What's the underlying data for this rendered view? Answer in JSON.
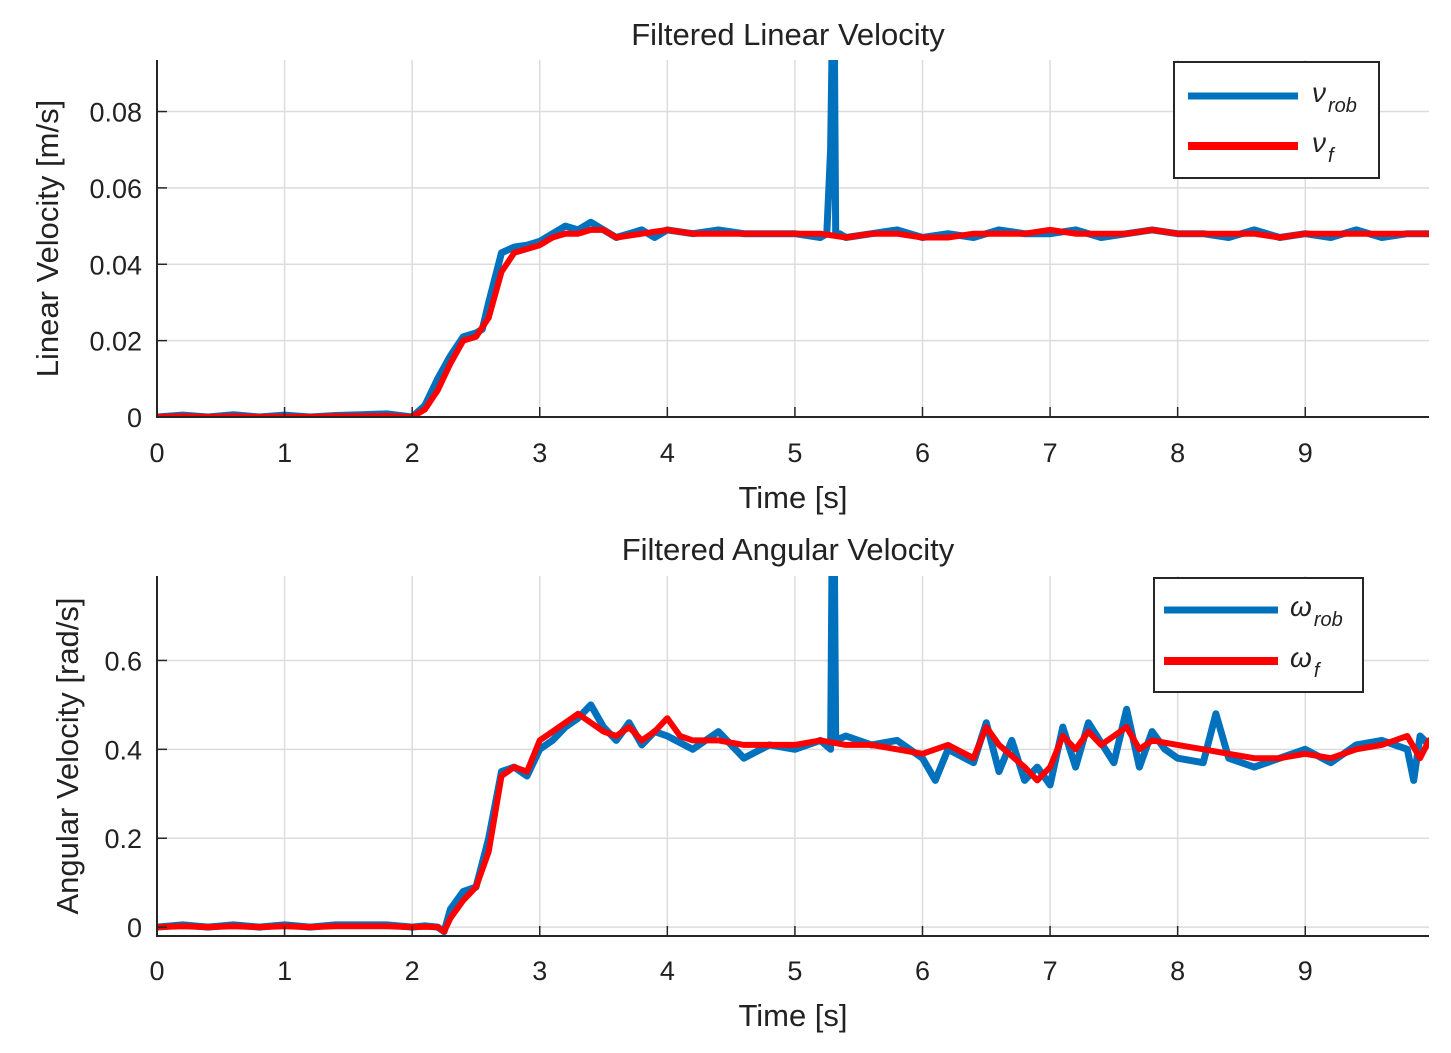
{
  "chart_data": [
    {
      "type": "line",
      "title": "Filtered Linear Velocity",
      "xlabel": "Time [s]",
      "ylabel": "Linear Velocity [m/s]",
      "xlim": [
        0,
        9.97
      ],
      "ylim": [
        0,
        0.0935
      ],
      "grid": true,
      "xticks": [
        0,
        1,
        2,
        3,
        4,
        5,
        6,
        7,
        8,
        9
      ],
      "xtick_labels": [
        "0",
        "1",
        "2",
        "3",
        "4",
        "5",
        "6",
        "7",
        "8",
        "9"
      ],
      "yticks": [
        0,
        0.02,
        0.04,
        0.06,
        0.08
      ],
      "ytick_labels": [
        "0",
        "0.02",
        "0.04",
        "0.06",
        "0.08"
      ],
      "legend_position": "top-right",
      "series": [
        {
          "name": "ν_rob",
          "legend_main": "ν",
          "legend_sub": "rob",
          "color": "#0072BD",
          "x": [
            0,
            0.2,
            0.4,
            0.6,
            0.8,
            1.0,
            1.2,
            1.4,
            1.6,
            1.8,
            2.0,
            2.1,
            2.2,
            2.3,
            2.4,
            2.5,
            2.55,
            2.6,
            2.7,
            2.8,
            2.9,
            3.0,
            3.1,
            3.2,
            3.3,
            3.4,
            3.5,
            3.6,
            3.7,
            3.8,
            3.9,
            4.0,
            4.2,
            4.4,
            4.6,
            4.8,
            5.0,
            5.2,
            5.25,
            5.28,
            5.29,
            5.3,
            5.31,
            5.32,
            5.35,
            5.4,
            5.6,
            5.8,
            6.0,
            6.2,
            6.4,
            6.6,
            6.8,
            7.0,
            7.2,
            7.4,
            7.6,
            7.8,
            8.0,
            8.2,
            8.4,
            8.6,
            8.8,
            9.0,
            9.2,
            9.4,
            9.6,
            9.8,
            9.97
          ],
          "values": [
            0,
            0.0005,
            0,
            0.0006,
            0,
            0.0005,
            0,
            0.0004,
            0.0006,
            0.0008,
            0,
            0.003,
            0.01,
            0.016,
            0.021,
            0.022,
            0.023,
            0.03,
            0.043,
            0.0445,
            0.045,
            0.046,
            0.048,
            0.05,
            0.049,
            0.051,
            0.049,
            0.047,
            0.048,
            0.049,
            0.047,
            0.049,
            0.048,
            0.049,
            0.048,
            0.048,
            0.048,
            0.047,
            0.048,
            0.07,
            0.0935,
            0.0935,
            0.0935,
            0.048,
            0.048,
            0.047,
            0.048,
            0.049,
            0.047,
            0.048,
            0.047,
            0.049,
            0.048,
            0.048,
            0.049,
            0.047,
            0.048,
            0.049,
            0.048,
            0.048,
            0.047,
            0.049,
            0.047,
            0.048,
            0.047,
            0.049,
            0.047,
            0.048,
            0.048
          ]
        },
        {
          "name": "ν_f",
          "legend_main": "ν",
          "legend_sub": "f",
          "color": "#FF0000",
          "x": [
            0,
            0.2,
            0.4,
            0.6,
            0.8,
            1.0,
            1.2,
            1.4,
            1.6,
            1.8,
            2.0,
            2.1,
            2.2,
            2.3,
            2.4,
            2.5,
            2.6,
            2.7,
            2.8,
            2.9,
            3.0,
            3.1,
            3.2,
            3.3,
            3.4,
            3.5,
            3.6,
            3.8,
            4.0,
            4.2,
            4.4,
            4.6,
            4.8,
            5.0,
            5.2,
            5.4,
            5.6,
            5.8,
            6.0,
            6.2,
            6.4,
            6.6,
            6.8,
            7.0,
            7.2,
            7.4,
            7.6,
            7.8,
            8.0,
            8.2,
            8.4,
            8.6,
            8.8,
            9.0,
            9.2,
            9.4,
            9.6,
            9.8,
            9.97
          ],
          "values": [
            0,
            0.0002,
            0,
            0.0002,
            0,
            0.0001,
            0,
            0.0002,
            0.0002,
            0.0003,
            0,
            0.002,
            0.007,
            0.014,
            0.02,
            0.021,
            0.026,
            0.038,
            0.043,
            0.044,
            0.045,
            0.047,
            0.048,
            0.048,
            0.049,
            0.049,
            0.047,
            0.048,
            0.049,
            0.048,
            0.048,
            0.048,
            0.048,
            0.048,
            0.048,
            0.047,
            0.048,
            0.048,
            0.047,
            0.047,
            0.048,
            0.048,
            0.048,
            0.049,
            0.048,
            0.048,
            0.048,
            0.049,
            0.048,
            0.048,
            0.048,
            0.048,
            0.047,
            0.048,
            0.048,
            0.048,
            0.048,
            0.048,
            0.048
          ]
        }
      ]
    },
    {
      "type": "line",
      "title": "Filtered Angular Velocity",
      "xlabel": "Time [s]",
      "ylabel": "Angular Velocity [rad/s]",
      "xlim": [
        0,
        9.97
      ],
      "ylim": [
        -0.02,
        0.79
      ],
      "grid": true,
      "xticks": [
        0,
        1,
        2,
        3,
        4,
        5,
        6,
        7,
        8,
        9
      ],
      "xtick_labels": [
        "0",
        "1",
        "2",
        "3",
        "4",
        "5",
        "6",
        "7",
        "8",
        "9"
      ],
      "yticks": [
        0,
        0.2,
        0.4,
        0.6
      ],
      "ytick_labels": [
        "0",
        "0.2",
        "0.4",
        "0.6"
      ],
      "legend_position": "top-right",
      "series": [
        {
          "name": "ω_rob",
          "legend_main": "ω",
          "legend_sub": "rob",
          "color": "#0072BD",
          "x": [
            0,
            0.2,
            0.4,
            0.6,
            0.8,
            1.0,
            1.2,
            1.4,
            1.6,
            1.8,
            2.0,
            2.1,
            2.2,
            2.25,
            2.3,
            2.4,
            2.5,
            2.6,
            2.7,
            2.8,
            2.9,
            3.0,
            3.1,
            3.2,
            3.3,
            3.4,
            3.5,
            3.6,
            3.7,
            3.8,
            3.9,
            4.0,
            4.2,
            4.4,
            4.6,
            4.8,
            5.0,
            5.2,
            5.28,
            5.29,
            5.3,
            5.31,
            5.32,
            5.4,
            5.6,
            5.8,
            6.0,
            6.1,
            6.2,
            6.4,
            6.5,
            6.6,
            6.7,
            6.8,
            6.9,
            7.0,
            7.1,
            7.2,
            7.3,
            7.5,
            7.6,
            7.7,
            7.8,
            7.9,
            8.0,
            8.2,
            8.3,
            8.4,
            8.6,
            8.8,
            9.0,
            9.2,
            9.4,
            9.6,
            9.8,
            9.85,
            9.9,
            9.97
          ],
          "values": [
            0,
            0.005,
            0,
            0.005,
            0,
            0.005,
            0,
            0.005,
            0.005,
            0.005,
            0,
            0.003,
            0,
            -0.01,
            0.04,
            0.08,
            0.09,
            0.2,
            0.35,
            0.36,
            0.34,
            0.4,
            0.42,
            0.45,
            0.47,
            0.5,
            0.45,
            0.42,
            0.46,
            0.41,
            0.44,
            0.43,
            0.4,
            0.44,
            0.38,
            0.41,
            0.4,
            0.42,
            0.4,
            0.79,
            0.79,
            0.79,
            0.42,
            0.43,
            0.41,
            0.42,
            0.38,
            0.33,
            0.4,
            0.37,
            0.46,
            0.35,
            0.42,
            0.33,
            0.36,
            0.32,
            0.45,
            0.36,
            0.46,
            0.37,
            0.49,
            0.36,
            0.44,
            0.4,
            0.38,
            0.37,
            0.48,
            0.38,
            0.36,
            0.38,
            0.4,
            0.37,
            0.41,
            0.42,
            0.4,
            0.33,
            0.43,
            0.41
          ]
        },
        {
          "name": "ω_f",
          "legend_main": "ω",
          "legend_sub": "f",
          "color": "#FF0000",
          "x": [
            0,
            0.2,
            0.4,
            0.6,
            0.8,
            1.0,
            1.2,
            1.4,
            1.6,
            1.8,
            2.0,
            2.1,
            2.2,
            2.25,
            2.3,
            2.4,
            2.5,
            2.6,
            2.7,
            2.8,
            2.9,
            3.0,
            3.1,
            3.2,
            3.3,
            3.4,
            3.5,
            3.6,
            3.7,
            3.8,
            3.9,
            4.0,
            4.1,
            4.2,
            4.4,
            4.6,
            4.8,
            5.0,
            5.2,
            5.4,
            5.6,
            5.8,
            6.0,
            6.2,
            6.4,
            6.5,
            6.6,
            6.8,
            6.9,
            7.0,
            7.1,
            7.2,
            7.3,
            7.4,
            7.6,
            7.7,
            7.8,
            8.0,
            8.2,
            8.4,
            8.6,
            8.8,
            9.0,
            9.2,
            9.4,
            9.6,
            9.8,
            9.9,
            9.97
          ],
          "values": [
            0,
            0.002,
            0,
            0.002,
            0,
            0.002,
            0,
            0.002,
            0.002,
            0.002,
            0,
            0.001,
            0,
            -0.01,
            0.02,
            0.06,
            0.09,
            0.17,
            0.34,
            0.36,
            0.35,
            0.42,
            0.44,
            0.46,
            0.48,
            0.46,
            0.44,
            0.43,
            0.45,
            0.42,
            0.44,
            0.47,
            0.43,
            0.42,
            0.42,
            0.41,
            0.41,
            0.41,
            0.42,
            0.41,
            0.41,
            0.4,
            0.39,
            0.41,
            0.38,
            0.45,
            0.41,
            0.36,
            0.33,
            0.36,
            0.43,
            0.4,
            0.44,
            0.41,
            0.45,
            0.4,
            0.42,
            0.41,
            0.4,
            0.39,
            0.38,
            0.38,
            0.39,
            0.38,
            0.4,
            0.41,
            0.43,
            0.38,
            0.42
          ]
        }
      ]
    }
  ]
}
